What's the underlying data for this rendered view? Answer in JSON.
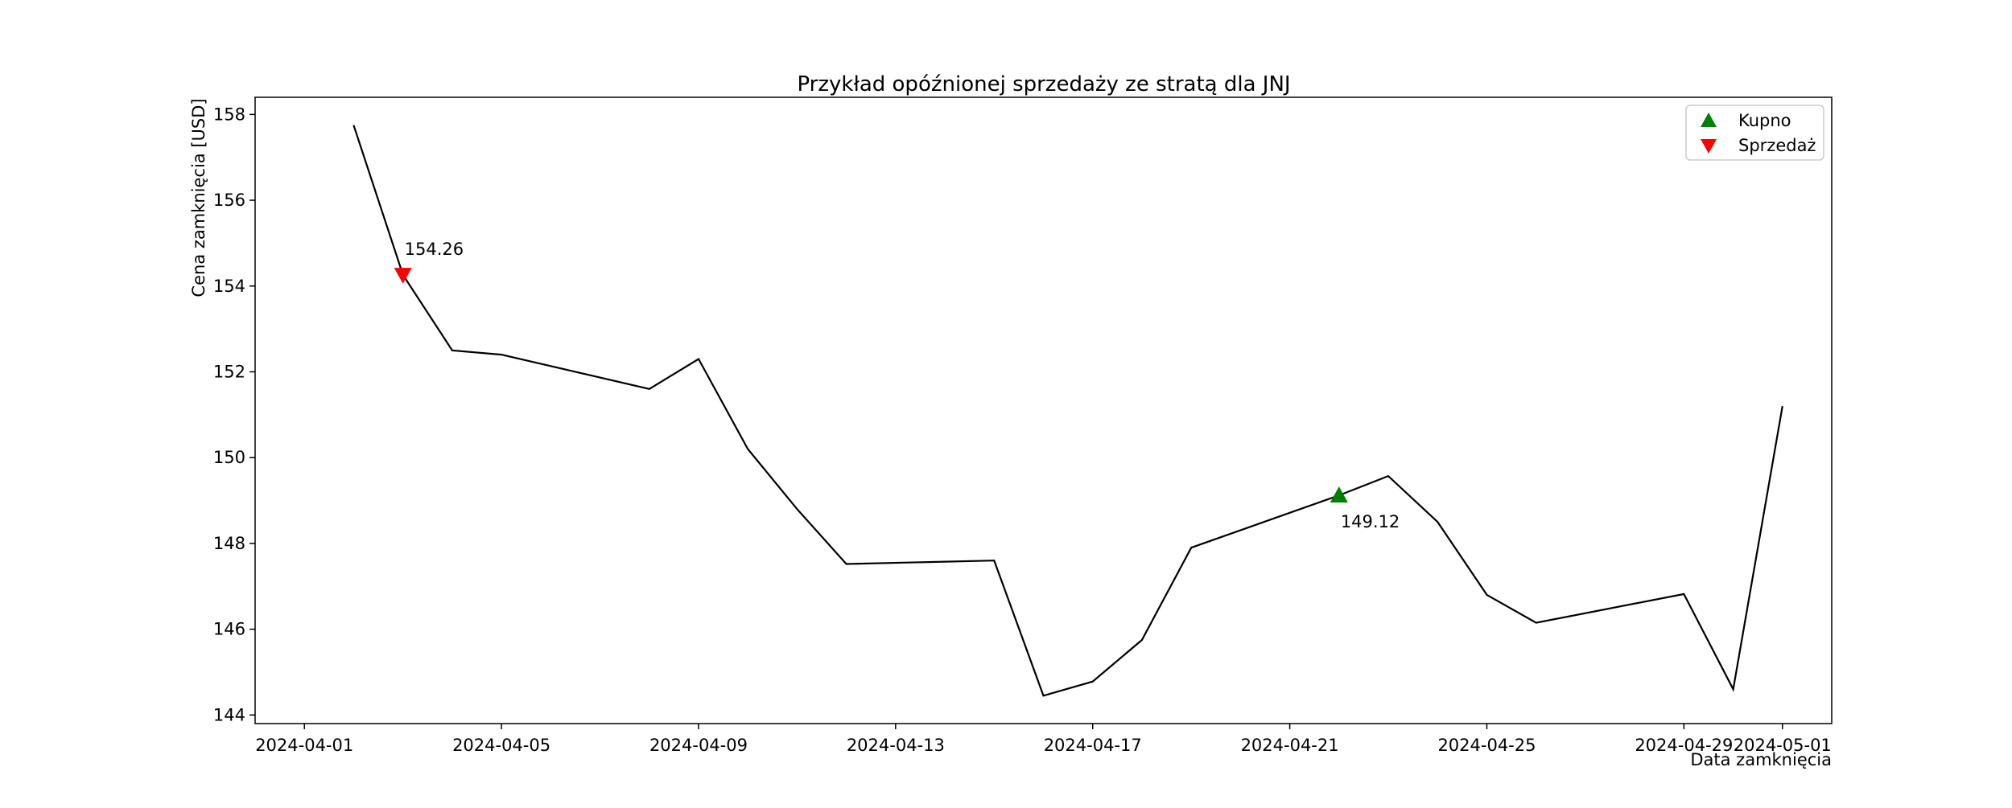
{
  "chart_data": {
    "type": "line",
    "title": "Przykład opóźnionej sprzedaży ze stratą dla JNJ",
    "xlabel": "Data zamknięcia",
    "ylabel": "Cena zamknięcia [USD]",
    "x_axis_type": "date",
    "xlim": [
      "2024-03-31",
      "2024-05-02"
    ],
    "ylim": [
      143.8,
      158.4
    ],
    "x_ticks": [
      "2024-04-01",
      "2024-04-05",
      "2024-04-09",
      "2024-04-13",
      "2024-04-17",
      "2024-04-21",
      "2024-04-25",
      "2024-04-29",
      "2024-05-01"
    ],
    "y_ticks": [
      144,
      146,
      148,
      150,
      152,
      154,
      156,
      158
    ],
    "grid": false,
    "legend_position": "top-right",
    "series": [
      {
        "color": "#000000",
        "points": [
          {
            "x": "2024-04-02",
            "y": 157.75
          },
          {
            "x": "2024-04-03",
            "y": 154.26
          },
          {
            "x": "2024-04-04",
            "y": 152.5
          },
          {
            "x": "2024-04-05",
            "y": 152.4
          },
          {
            "x": "2024-04-08",
            "y": 151.6
          },
          {
            "x": "2024-04-09",
            "y": 152.3
          },
          {
            "x": "2024-04-10",
            "y": 150.2
          },
          {
            "x": "2024-04-11",
            "y": 148.8
          },
          {
            "x": "2024-04-12",
            "y": 147.52
          },
          {
            "x": "2024-04-15",
            "y": 147.6
          },
          {
            "x": "2024-04-16",
            "y": 144.45
          },
          {
            "x": "2024-04-17",
            "y": 144.78
          },
          {
            "x": "2024-04-18",
            "y": 145.75
          },
          {
            "x": "2024-04-19",
            "y": 147.9
          },
          {
            "x": "2024-04-22",
            "y": 149.12
          },
          {
            "x": "2024-04-23",
            "y": 149.57
          },
          {
            "x": "2024-04-24",
            "y": 148.5
          },
          {
            "x": "2024-04-25",
            "y": 146.8
          },
          {
            "x": "2024-04-26",
            "y": 146.15
          },
          {
            "x": "2024-04-29",
            "y": 146.82
          },
          {
            "x": "2024-04-30",
            "y": 144.6
          },
          {
            "x": "2024-05-01",
            "y": 151.2
          }
        ]
      }
    ],
    "markers": [
      {
        "type": "buy",
        "shape": "triangle-up",
        "x": "2024-04-22",
        "y": 149.12,
        "label": "149.12",
        "color": "#008000"
      },
      {
        "type": "sell",
        "shape": "triangle-down",
        "x": "2024-04-03",
        "y": 154.26,
        "label": "154.26",
        "color": "#ff0000"
      }
    ],
    "legend": [
      {
        "label": "Kupno",
        "shape": "triangle-up",
        "color": "#008000"
      },
      {
        "label": "Sprzedaż",
        "shape": "triangle-down",
        "color": "#ff0000"
      }
    ]
  }
}
